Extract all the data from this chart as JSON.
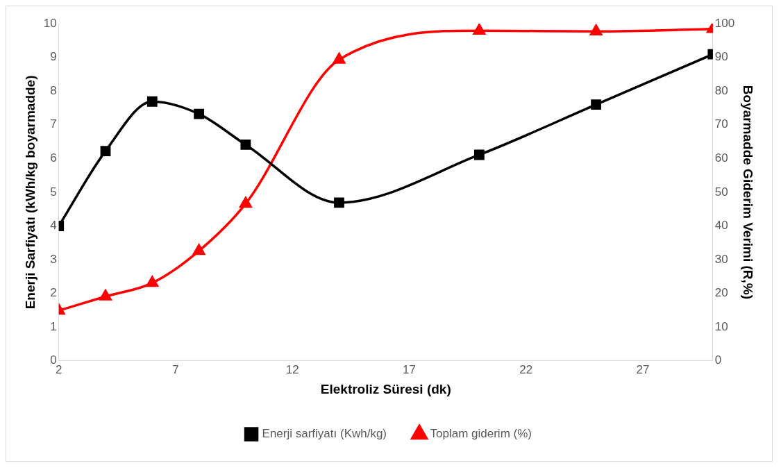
{
  "chart_data": {
    "type": "line",
    "xlabel": "Elektroliz Süresi (dk)",
    "ylabel": "Enerji Sarfiyatı (kWh/kg boyarmadde)",
    "y2label": "Boyarmadde Giderim Verimi (R,%)",
    "x": [
      2,
      4,
      6,
      8,
      10,
      14,
      20,
      25,
      30
    ],
    "series": [
      {
        "name": "Enerji sarfiyatı (Kwh/kg)",
        "color": "#000000",
        "marker": "square",
        "values": [
          4.0,
          6.22,
          7.69,
          7.32,
          6.41,
          4.69,
          6.11,
          7.6,
          9.09
        ]
      },
      {
        "name": "Toplam giderim (%)",
        "color": "#ff0000",
        "marker": "triangle",
        "axis": "y2",
        "values": [
          14.9,
          19.1,
          23.1,
          32.6,
          46.6,
          89.3,
          97.9,
          97.7,
          98.4
        ]
      }
    ],
    "xlim": [
      2,
      30
    ],
    "xticks": [
      2,
      7,
      12,
      17,
      22,
      27
    ],
    "ylim": [
      0,
      10
    ],
    "yticks": [
      0,
      1,
      2,
      3,
      4,
      5,
      6,
      7,
      8,
      9,
      10
    ],
    "y2lim": [
      0,
      100
    ],
    "y2ticks": [
      0,
      10,
      20,
      30,
      40,
      50,
      60,
      70,
      80,
      90,
      100
    ],
    "grid": false,
    "legend": "bottom"
  }
}
